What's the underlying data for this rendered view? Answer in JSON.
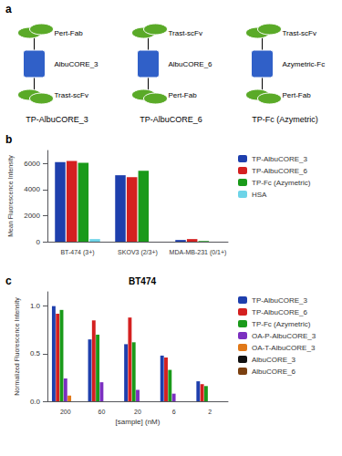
{
  "chart_data": [
    {
      "type": "diagram",
      "annotations": [
        "a"
      ],
      "colors": [
        "#3060c8",
        "#5aaa28"
      ],
      "categories": [
        "TP-AlbuCORE_3",
        "TP-AlbuCORE_6",
        "TP-Fc (Azymetric)"
      ],
      "parts": [
        [
          "Pert-Fab",
          "AlbuCORE_3",
          "Trast-scFv"
        ],
        [
          "Trast-scFv",
          "AlbuCORE_6",
          "Pert-Fab"
        ],
        [
          "Trast-scFv",
          "Azymetric-Fc",
          "Pert-Fab"
        ]
      ]
    },
    {
      "type": "bar",
      "annotations": [
        "b"
      ],
      "categories": [
        "BT-474 (3+)",
        "SKOV3 (2/3+)",
        "MDA-MB-231 (0/1+)"
      ],
      "series": [
        {
          "name": "TP-AlbuCORE_3",
          "color": "#1e3fad",
          "values": [
            6100,
            5100,
            130
          ]
        },
        {
          "name": "TP-AlbuCORE_6",
          "color": "#d42020",
          "values": [
            6200,
            4950,
            200
          ]
        },
        {
          "name": "TP-Fc (Azymetric)",
          "color": "#1a9a1a",
          "values": [
            6050,
            5450,
            50
          ]
        },
        {
          "name": "HSA",
          "color": "#6dd4e8",
          "values": [
            200,
            0,
            0
          ]
        }
      ],
      "ylabel": "Mean Fluorescence Intensity",
      "ylim": [
        0,
        7000
      ],
      "yticks": [
        0,
        2000,
        4000,
        6000
      ],
      "grid": false,
      "legend": "right"
    },
    {
      "type": "bar",
      "annotations": [
        "c"
      ],
      "title": "BT474",
      "categories": [
        "200",
        "60",
        "20",
        "6",
        "2"
      ],
      "series": [
        {
          "name": "TP-AlbuCORE_3",
          "color": "#1e3fad",
          "values": [
            1.0,
            0.65,
            0.6,
            0.48,
            0.21
          ]
        },
        {
          "name": "TP-AlbuCORE_6",
          "color": "#d42020",
          "values": [
            0.92,
            0.85,
            0.88,
            0.46,
            0.18
          ]
        },
        {
          "name": "TP-Fc (Azymetric)",
          "color": "#1a9a1a",
          "values": [
            0.96,
            0.7,
            0.62,
            0.33,
            0.16
          ]
        },
        {
          "name": "OA-P-AlbuCORE_3",
          "color": "#7b30c0",
          "values": [
            0.24,
            0.2,
            0.12,
            0.08,
            0.0
          ]
        },
        {
          "name": "OA-T-AlbuCORE_3",
          "color": "#e07818",
          "values": [
            0.06,
            0.0,
            0.0,
            0.0,
            0.0
          ]
        },
        {
          "name": "AlbuCORE_3",
          "color": "#101010",
          "values": [
            0.0,
            0.0,
            0.0,
            0.0,
            0.0
          ]
        },
        {
          "name": "AlbuCORE_6",
          "color": "#7b4010",
          "values": [
            0.0,
            0.0,
            0.0,
            0.0,
            0.0
          ]
        }
      ],
      "xlabel": "[sample] (nM)",
      "ylabel": "Normalized Fluorescence Intensity",
      "ylim": [
        0,
        1.15
      ],
      "yticks": [
        {
          "value": 0.0,
          "label": "0.0"
        },
        {
          "value": 0.5,
          "label": "0.5"
        },
        {
          "value": 1.0,
          "label": "1.0"
        }
      ],
      "grid": false,
      "legend": "right"
    }
  ]
}
